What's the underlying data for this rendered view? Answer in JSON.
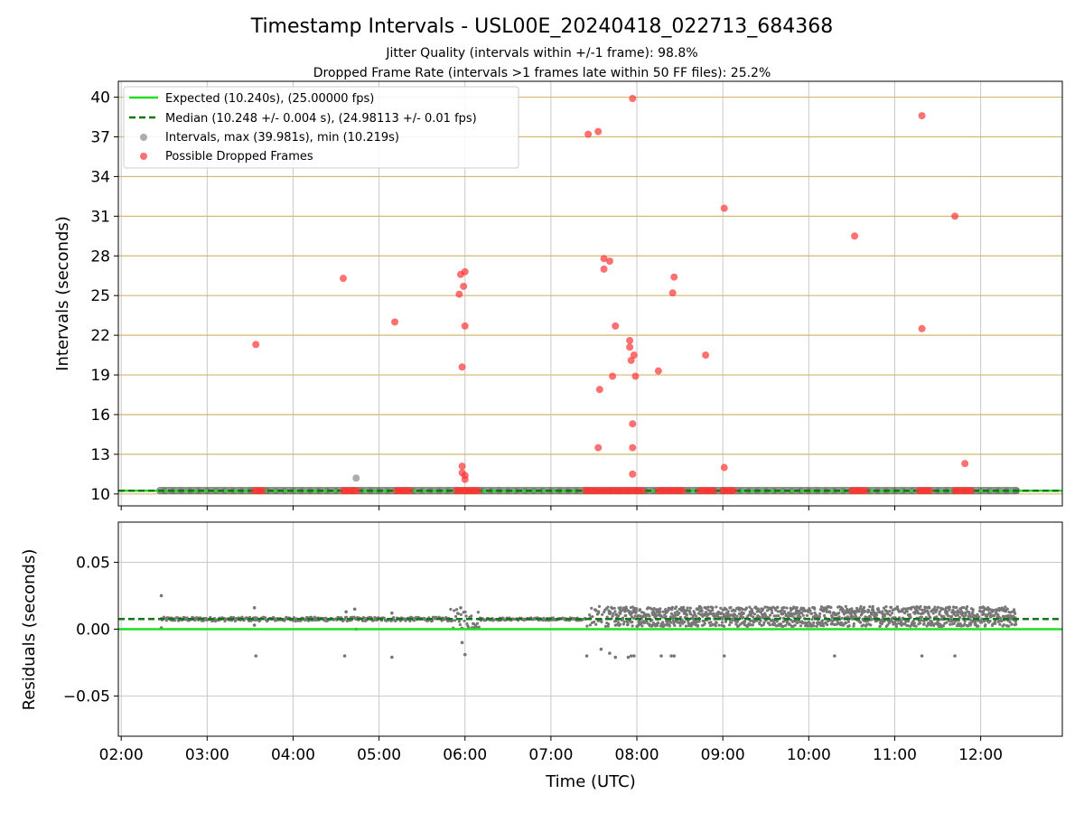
{
  "chart_data": [
    {
      "type": "scatter",
      "title": "Timestamp Intervals - USL00E_20240418_022713_684368",
      "subtitles": [
        "Jitter Quality (intervals within +/-1 frame): 98.8%",
        "Dropped Frame Rate (intervals >1 frames late within 50 FF files): 25.2%"
      ],
      "ylabel": "Intervals (seconds)",
      "ylim": [
        9.1,
        41.2
      ],
      "xlim": [
        "01:58",
        "12:57"
      ],
      "yticks": [
        "10",
        "13",
        "16",
        "19",
        "22",
        "25",
        "28",
        "31",
        "34",
        "37",
        "40"
      ],
      "horizontal_gridlines_color": "#d2b96e",
      "grid_x": true,
      "legend_position": "top-left",
      "legend": [
        "Expected (10.240s), (25.00000 fps)",
        "Median (10.248 +/- 0.004 s), (24.98113 +/- 0.01 fps)",
        "Intervals, max (39.981s), min (10.219s)",
        "Possible Dropped Frames"
      ],
      "lines": {
        "expected": 10.24,
        "median": 10.248,
        "expected_color": "#22dd22",
        "median_color": "#117711"
      },
      "intervals_band": {
        "x_start": "02:27",
        "x_end": "12:25",
        "y": 10.25,
        "color": "#555555"
      },
      "intervals_extra_points": [
        {
          "x": "04:44",
          "y": 11.2
        }
      ],
      "dropped_frame_clusters": [
        {
          "x_start": "03:33",
          "x_end": "03:40"
        },
        {
          "x_start": "04:35",
          "x_end": "04:46"
        },
        {
          "x_start": "05:12",
          "x_end": "05:22"
        },
        {
          "x_start": "05:54",
          "x_end": "06:10"
        },
        {
          "x_start": "07:24",
          "x_end": "08:05"
        },
        {
          "x_start": "08:15",
          "x_end": "08:33"
        },
        {
          "x_start": "08:44",
          "x_end": "08:55"
        },
        {
          "x_start": "09:00",
          "x_end": "09:09"
        },
        {
          "x_start": "10:30",
          "x_end": "10:40"
        },
        {
          "x_start": "11:17",
          "x_end": "11:26"
        },
        {
          "x_start": "11:42",
          "x_end": "11:55"
        }
      ],
      "dropped_frames": [
        {
          "x": "03:34",
          "y": 21.3
        },
        {
          "x": "04:35",
          "y": 26.3
        },
        {
          "x": "05:11",
          "y": 23.0
        },
        {
          "x": "05:56",
          "y": 25.1
        },
        {
          "x": "05:57",
          "y": 26.6
        },
        {
          "x": "05:58",
          "y": 19.6
        },
        {
          "x": "05:58",
          "y": 12.1
        },
        {
          "x": "05:59",
          "y": 25.7
        },
        {
          "x": "06:00",
          "y": 26.8
        },
        {
          "x": "06:00",
          "y": 22.7
        },
        {
          "x": "05:58",
          "y": 11.6
        },
        {
          "x": "06:00",
          "y": 11.4
        },
        {
          "x": "06:00",
          "y": 11.1
        },
        {
          "x": "07:26",
          "y": 37.2
        },
        {
          "x": "07:33",
          "y": 37.4
        },
        {
          "x": "07:37",
          "y": 27.8
        },
        {
          "x": "07:37",
          "y": 27.0
        },
        {
          "x": "07:41",
          "y": 27.6
        },
        {
          "x": "07:45",
          "y": 22.7
        },
        {
          "x": "07:34",
          "y": 17.9
        },
        {
          "x": "07:33",
          "y": 13.5
        },
        {
          "x": "07:43",
          "y": 18.9
        },
        {
          "x": "07:55",
          "y": 21.6
        },
        {
          "x": "07:55",
          "y": 21.1
        },
        {
          "x": "07:58",
          "y": 20.5
        },
        {
          "x": "07:56",
          "y": 20.1
        },
        {
          "x": "07:59",
          "y": 18.9
        },
        {
          "x": "07:57",
          "y": 15.3
        },
        {
          "x": "07:57",
          "y": 13.5
        },
        {
          "x": "07:57",
          "y": 11.5
        },
        {
          "x": "07:57",
          "y": 39.9
        },
        {
          "x": "08:15",
          "y": 19.3
        },
        {
          "x": "08:25",
          "y": 25.2
        },
        {
          "x": "08:26",
          "y": 26.4
        },
        {
          "x": "08:48",
          "y": 20.5
        },
        {
          "x": "09:01",
          "y": 31.6
        },
        {
          "x": "09:01",
          "y": 12.0
        },
        {
          "x": "10:32",
          "y": 29.5
        },
        {
          "x": "11:19",
          "y": 38.6
        },
        {
          "x": "11:19",
          "y": 22.5
        },
        {
          "x": "11:42",
          "y": 31.0
        },
        {
          "x": "11:49",
          "y": 12.3
        }
      ],
      "dropped_color": "#ff3333",
      "interval_color": "#999999"
    },
    {
      "type": "scatter",
      "ylabel": "Residuals (seconds)",
      "xlabel": "Time (UTC)",
      "ylim": [
        -0.08,
        0.08
      ],
      "yticks": [
        "−0.05",
        "0.00",
        "0.05"
      ],
      "ytick_values": [
        -0.05,
        0,
        0.05
      ],
      "xticks": [
        "02:00",
        "03:00",
        "04:00",
        "05:00",
        "06:00",
        "07:00",
        "08:00",
        "09:00",
        "10:00",
        "11:00",
        "12:00"
      ],
      "grid_x": true,
      "grid_y": true,
      "lines": {
        "expected": 0.0,
        "median": 0.0076,
        "expected_color": "#22dd22",
        "median_color": "#117711"
      },
      "point_color": "#777777",
      "quiet_segments": [
        {
          "x_start": "02:28",
          "x_end": "03:45",
          "low": 0.006,
          "high": 0.009
        },
        {
          "x_start": "03:45",
          "x_end": "05:50",
          "low": 0.006,
          "high": 0.009
        },
        {
          "x_start": "05:50",
          "x_end": "06:10",
          "low": 0.0,
          "high": 0.015
        },
        {
          "x_start": "06:10",
          "x_end": "07:25",
          "low": 0.0065,
          "high": 0.0085
        }
      ],
      "noisy_segment": {
        "x_start": "07:25",
        "x_end": "12:25",
        "low": 0.002,
        "high": 0.017,
        "sparse_until": "07:45"
      },
      "outliers": [
        {
          "x": "02:28",
          "y": 0.025
        },
        {
          "x": "02:28",
          "y": 0.001
        },
        {
          "x": "03:33",
          "y": 0.016
        },
        {
          "x": "03:33",
          "y": 0.003
        },
        {
          "x": "03:34",
          "y": -0.02
        },
        {
          "x": "04:36",
          "y": -0.02
        },
        {
          "x": "04:37",
          "y": 0.013
        },
        {
          "x": "04:43",
          "y": 0.015
        },
        {
          "x": "04:44",
          "y": 0.0
        },
        {
          "x": "05:09",
          "y": 0.012
        },
        {
          "x": "05:09",
          "y": -0.021
        },
        {
          "x": "05:57",
          "y": 0.016
        },
        {
          "x": "05:58",
          "y": -0.01
        },
        {
          "x": "06:00",
          "y": -0.019
        },
        {
          "x": "07:25",
          "y": -0.02
        },
        {
          "x": "07:35",
          "y": -0.015
        },
        {
          "x": "07:41",
          "y": -0.018
        },
        {
          "x": "07:45",
          "y": -0.021
        },
        {
          "x": "07:54",
          "y": -0.021
        },
        {
          "x": "07:56",
          "y": -0.02
        },
        {
          "x": "07:58",
          "y": -0.02
        },
        {
          "x": "08:17",
          "y": -0.02
        },
        {
          "x": "08:24",
          "y": -0.02
        },
        {
          "x": "08:26",
          "y": -0.02
        },
        {
          "x": "09:01",
          "y": -0.02
        },
        {
          "x": "10:18",
          "y": -0.02
        },
        {
          "x": "11:19",
          "y": -0.02
        },
        {
          "x": "11:42",
          "y": -0.02
        }
      ]
    }
  ]
}
